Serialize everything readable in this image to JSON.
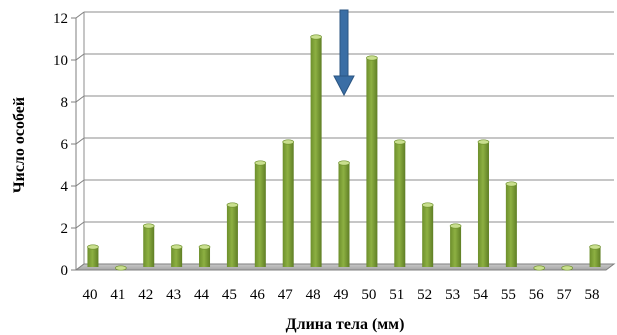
{
  "chart_data": {
    "type": "bar",
    "title": "",
    "xlabel": "Длина тела (мм)",
    "ylabel": "Число особей",
    "categories": [
      "40",
      "41",
      "42",
      "43",
      "44",
      "45",
      "46",
      "47",
      "48",
      "49",
      "50",
      "51",
      "52",
      "53",
      "54",
      "55",
      "56",
      "57",
      "58"
    ],
    "values": [
      1,
      0,
      2,
      1,
      1,
      3,
      5,
      6,
      11,
      5,
      10,
      6,
      3,
      2,
      6,
      4,
      0,
      0,
      1
    ],
    "ylim": [
      0,
      12
    ],
    "yticks": [
      0,
      2,
      4,
      6,
      8,
      10,
      12
    ],
    "grid": true,
    "bar_color": "#8db042",
    "bar_top_color": "#c9df8e",
    "floor_color": "#a6a6a6",
    "annotation": {
      "type": "arrow",
      "icon": "down-arrow-icon",
      "at_category": "49",
      "color": "#3a6ea5"
    }
  }
}
